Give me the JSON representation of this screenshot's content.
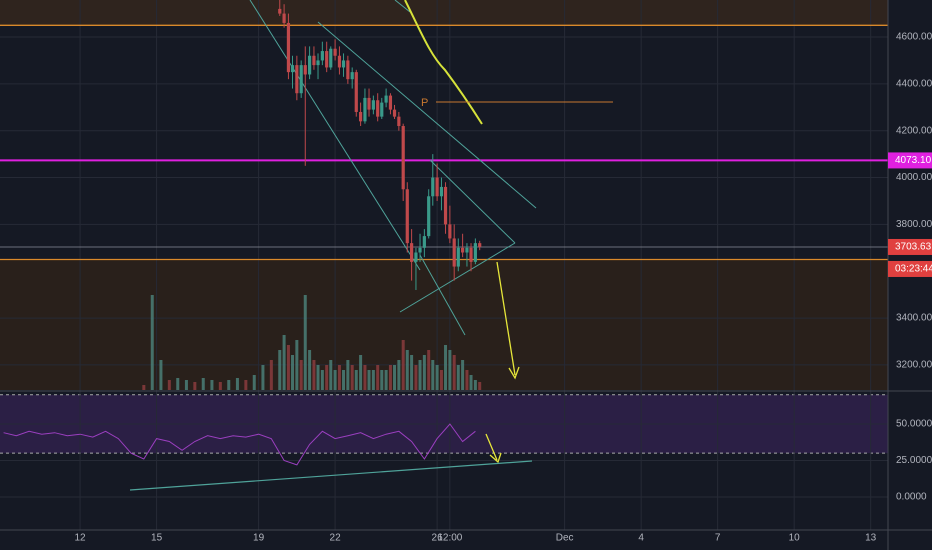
{
  "chart_data": [
    {
      "type": "candlestick",
      "x": [
        19.83,
        20,
        20.17,
        20.33,
        20.5,
        20.67,
        20.83,
        21,
        21.17,
        21.33,
        21.5,
        21.67,
        21.83,
        22,
        22.17,
        22.33,
        22.5,
        22.67,
        22.83,
        23,
        23.17,
        23.33,
        23.5,
        23.67,
        23.83,
        24,
        24.17,
        24.33,
        24.5,
        24.67,
        24.83,
        25,
        25.17,
        25.33,
        25.5,
        25.67,
        25.83,
        26,
        26.17,
        26.33,
        26.5,
        26.67,
        26.83,
        27,
        27.17,
        27.33,
        27.5,
        27.67
      ],
      "open": [
        4720,
        4700,
        4660,
        4450,
        4480,
        4360,
        4480,
        4440,
        4520,
        4480,
        4500,
        4540,
        4470,
        4550,
        4520,
        4470,
        4500,
        4420,
        4450,
        4280,
        4240,
        4340,
        4290,
        4330,
        4260,
        4320,
        4350,
        4290,
        4260,
        4220,
        3950,
        3720,
        3640,
        3680,
        3700,
        3750,
        3920,
        4000,
        3920,
        3960,
        3800,
        3740,
        3620,
        3700,
        3680,
        3700,
        3640,
        3720
      ],
      "high": [
        4760,
        4740,
        4700,
        4520,
        4520,
        4500,
        4560,
        4560,
        4560,
        4530,
        4580,
        4580,
        4560,
        4590,
        4560,
        4530,
        4520,
        4470,
        4460,
        4320,
        4380,
        4380,
        4350,
        4360,
        4340,
        4380,
        4360,
        4310,
        4280,
        4230,
        3980,
        3780,
        3700,
        3760,
        3780,
        3950,
        4100,
        4060,
        4000,
        3980,
        3880,
        3800,
        3740,
        3760,
        3720,
        3720,
        3740,
        3730
      ],
      "low": [
        4690,
        4640,
        4420,
        4380,
        4330,
        4340,
        4050,
        4420,
        4460,
        4420,
        4480,
        4450,
        4460,
        4500,
        4440,
        4430,
        4400,
        4380,
        4260,
        4220,
        4230,
        4260,
        4270,
        4240,
        4250,
        4300,
        4270,
        4250,
        4200,
        3900,
        3680,
        3560,
        3520,
        3640,
        3660,
        3740,
        3880,
        3900,
        3860,
        3760,
        3720,
        3560,
        3600,
        3660,
        3620,
        3600,
        3630,
        3690
      ],
      "close": [
        4700,
        4660,
        4450,
        4480,
        4360,
        4480,
        4440,
        4520,
        4480,
        4500,
        4540,
        4470,
        4550,
        4520,
        4470,
        4500,
        4420,
        4450,
        4280,
        4240,
        4340,
        4290,
        4330,
        4260,
        4320,
        4350,
        4290,
        4260,
        4220,
        3950,
        3720,
        3640,
        3680,
        3700,
        3750,
        3920,
        4000,
        3920,
        3960,
        3800,
        3740,
        3620,
        3700,
        3680,
        3700,
        3640,
        3720,
        3704
      ],
      "up_color": "#3a9a8a",
      "down_color": "#c0494b",
      "volume": {
        "x": [
          14.5,
          14.83,
          15.17,
          15.5,
          15.83,
          16.17,
          16.5,
          16.83,
          17.17,
          17.5,
          17.83,
          18.17,
          18.5,
          18.83,
          19.17,
          19.5,
          19.83,
          20,
          20.17,
          20.33,
          20.5,
          20.67,
          20.83,
          21,
          21.17,
          21.33,
          21.5,
          21.67,
          21.83,
          22,
          22.17,
          22.33,
          22.5,
          22.67,
          22.83,
          23,
          23.17,
          23.33,
          23.5,
          23.67,
          23.83,
          24,
          24.17,
          24.33,
          24.5,
          24.67,
          24.83,
          25,
          25.17,
          25.33,
          25.5,
          25.67,
          25.83,
          26,
          26.17,
          26.33,
          26.5,
          26.67,
          26.83,
          27,
          27.17,
          27.33,
          27.5,
          27.67
        ],
        "values": [
          5,
          95,
          30,
          10,
          12,
          10,
          8,
          12,
          10,
          8,
          10,
          12,
          10,
          15,
          25,
          30,
          40,
          55,
          45,
          35,
          50,
          30,
          95,
          40,
          30,
          25,
          20,
          25,
          30,
          20,
          25,
          20,
          30,
          25,
          20,
          35,
          25,
          20,
          20,
          25,
          20,
          20,
          25,
          25,
          30,
          50,
          40,
          35,
          25,
          30,
          35,
          40,
          30,
          25,
          20,
          45,
          40,
          35,
          25,
          30,
          20,
          15,
          10,
          8
        ],
        "ylim": [
          0,
          390
        ]
      },
      "xlim": [
        8.86,
        43.68
      ],
      "xticks": [
        12,
        15,
        19,
        22,
        26,
        {
          "value": 26.5,
          "label": "12:00"
        },
        {
          "value": 31,
          "label": "Dec"
        },
        {
          "value": 34,
          "label": "4"
        },
        {
          "value": 37,
          "label": "7"
        },
        {
          "value": 40,
          "label": "10"
        },
        {
          "value": 43,
          "label": "13"
        }
      ],
      "ylim": [
        3093,
        4758
      ],
      "yticks": [
        {
          "value": 3200,
          "label": "3200.00"
        },
        {
          "value": 3400,
          "label": "3400.00"
        },
        {
          "value": 3800,
          "label": "3800.00"
        },
        {
          "value": 4000,
          "label": "4000.00"
        },
        {
          "value": 4200,
          "label": "4200.00"
        },
        {
          "value": 4400,
          "label": "4400.00"
        },
        {
          "value": 4600,
          "label": "4600.00"
        }
      ],
      "levels": [
        {
          "value": 4650,
          "color": "#d9892b"
        },
        {
          "value": 3650,
          "color": "#d9892b"
        }
      ],
      "marked_level": {
        "value": 4073.1,
        "label": "4073.10",
        "color": "#e020e0"
      },
      "last_price": 3703.63,
      "countdown": "03:23:44",
      "annotation": "P",
      "grid": true
    },
    {
      "type": "line",
      "x": [
        9,
        9.5,
        10,
        10.5,
        11,
        11.5,
        12,
        12.5,
        13,
        13.5,
        14,
        14.5,
        15,
        15.5,
        16,
        16.5,
        17,
        17.5,
        18,
        18.5,
        19,
        19.5,
        20,
        20.5,
        21,
        21.5,
        22,
        22.5,
        23,
        23.5,
        24,
        24.5,
        25,
        25.5,
        26,
        26.5,
        27,
        27.5
      ],
      "values": [
        44,
        42,
        45,
        43,
        44,
        42,
        43,
        41,
        45,
        40,
        30,
        26,
        40,
        38,
        32,
        38,
        42,
        40,
        42,
        41,
        43,
        40,
        25,
        22,
        36,
        45,
        40,
        42,
        44,
        40,
        43,
        45,
        38,
        26,
        40,
        50,
        38,
        45
      ],
      "color": "#9b3fc0",
      "ylim": [
        -22.6,
        71.9
      ],
      "yticks": [
        {
          "value": 0,
          "label": "0.0000"
        },
        {
          "value": 25,
          "label": "25.0000"
        },
        {
          "value": 50,
          "label": "50.0000"
        }
      ],
      "bands": [
        70,
        30
      ]
    }
  ]
}
